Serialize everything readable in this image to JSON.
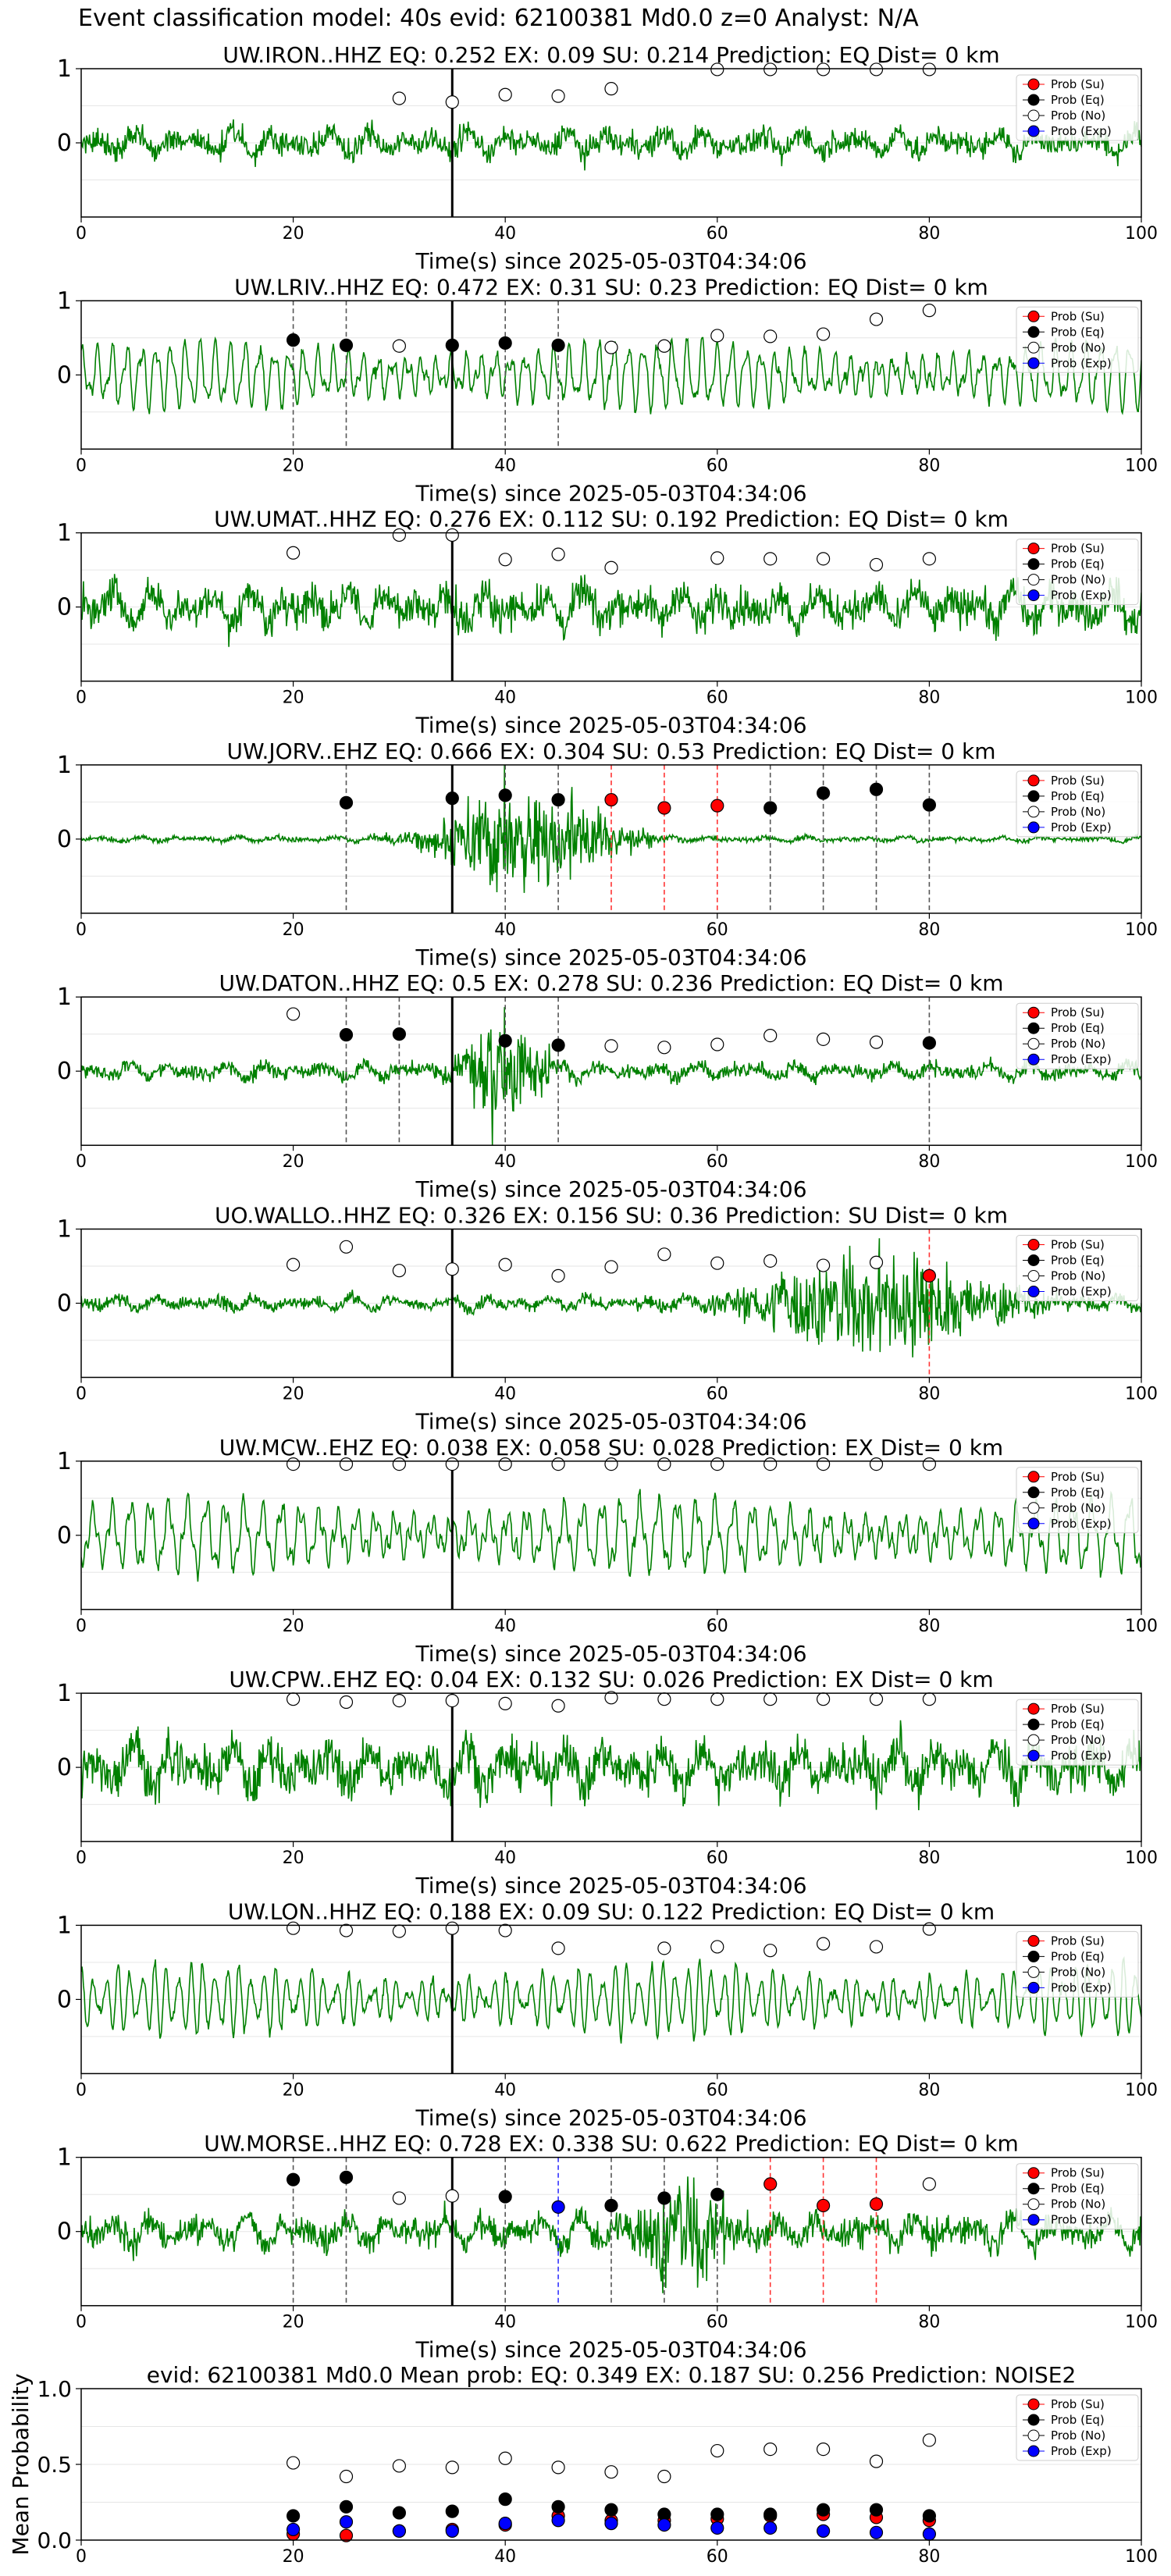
{
  "figure": {
    "title": "Event classification model: 40s evid: 62100381 Md0.0 z=0 Analyst: N/A"
  },
  "legend_labels": [
    "Prob (Su)",
    "Prob (Eq)",
    "Prob (No)",
    "Prob (Exp)"
  ],
  "colors": {
    "waveform": "#008000",
    "su": "#ff0000",
    "eq": "#000000",
    "no": "#ffffff",
    "exp": "#0000ff",
    "su_line": "#ff3333",
    "eq_line": "#555555",
    "exp_line": "#3333ff",
    "pick_line": "#000000"
  },
  "chart_data": [
    {
      "type": "scatter",
      "title": "UW.IRON..HHZ   EQ: 0.252  EX: 0.09  SU: 0.214   Prediction: EQ    Dist= 0 km",
      "xlabel": "Time(s) since 2025-05-03T04:34:06",
      "xlim": [
        0,
        100
      ],
      "ylim": [
        -1,
        1
      ],
      "xticks": [
        "0",
        "20",
        "40",
        "60",
        "80",
        "100"
      ],
      "yticks": [
        "1",
        "0"
      ],
      "pick_time": 35,
      "waveform": {
        "style": "noisy",
        "amplitude": 0.3
      },
      "series": [
        {
          "name": "Prob (No)",
          "x": [
            30,
            35,
            40,
            45,
            50,
            60,
            65,
            70,
            75,
            80
          ],
          "y": [
            0.6,
            0.55,
            0.65,
            0.63,
            0.73,
            0.99,
            0.99,
            0.99,
            0.99,
            0.99
          ]
        }
      ],
      "vlines": []
    },
    {
      "type": "scatter",
      "title": "UW.LRIV..HHZ   EQ: 0.472  EX: 0.31  SU: 0.23   Prediction: EQ    Dist= 0 km",
      "xlabel": "Time(s) since 2025-05-03T04:34:06",
      "xlim": [
        0,
        100
      ],
      "ylim": [
        -1,
        1
      ],
      "xticks": [
        "0",
        "20",
        "40",
        "60",
        "80",
        "100"
      ],
      "yticks": [
        "1",
        "0"
      ],
      "pick_time": 35,
      "waveform": {
        "style": "oscillation",
        "amplitude": 0.55
      },
      "series": [
        {
          "name": "Prob (Eq)",
          "x": [
            20,
            25,
            35,
            40,
            45
          ],
          "y": [
            0.47,
            0.4,
            0.4,
            0.43,
            0.4
          ]
        },
        {
          "name": "Prob (No)",
          "x": [
            30,
            50,
            55,
            60,
            65,
            70,
            75,
            80
          ],
          "y": [
            0.39,
            0.37,
            0.39,
            0.53,
            0.52,
            0.55,
            0.75,
            0.87
          ]
        }
      ],
      "vlines": [
        {
          "x": 20,
          "class": "eq"
        },
        {
          "x": 25,
          "class": "eq"
        },
        {
          "x": 40,
          "class": "eq"
        },
        {
          "x": 45,
          "class": "eq"
        }
      ]
    },
    {
      "type": "scatter",
      "title": "UW.UMAT..HHZ   EQ: 0.276  EX: 0.112  SU: 0.192   Prediction: EQ    Dist= 0 km",
      "xlabel": "Time(s) since 2025-05-03T04:34:06",
      "xlim": [
        0,
        100
      ],
      "ylim": [
        -1,
        1
      ],
      "xticks": [
        "0",
        "20",
        "40",
        "60",
        "80",
        "100"
      ],
      "yticks": [
        "1",
        "0"
      ],
      "pick_time": 35,
      "waveform": {
        "style": "noisy",
        "amplitude": 0.45
      },
      "series": [
        {
          "name": "Prob (No)",
          "x": [
            20,
            30,
            35,
            40,
            45,
            50,
            60,
            65,
            70,
            75,
            80
          ],
          "y": [
            0.73,
            0.97,
            0.97,
            0.64,
            0.71,
            0.53,
            0.66,
            0.65,
            0.65,
            0.57,
            0.65
          ]
        }
      ],
      "vlines": []
    },
    {
      "type": "scatter",
      "title": "UW.JORV..EHZ   EQ: 0.666  EX: 0.304  SU: 0.53   Prediction: EQ    Dist= 0 km",
      "xlabel": "Time(s) since 2025-05-03T04:34:06",
      "xlim": [
        0,
        100
      ],
      "ylim": [
        -1,
        1
      ],
      "xticks": [
        "0",
        "20",
        "40",
        "60",
        "80",
        "100"
      ],
      "yticks": [
        "1",
        "0"
      ],
      "pick_time": 35,
      "waveform": {
        "style": "burst",
        "amplitude": 0.06,
        "burst_center": 42,
        "burst_width": 8,
        "burst_amplitude": 0.75
      },
      "series": [
        {
          "name": "Prob (Su)",
          "x": [
            50,
            55,
            60
          ],
          "y": [
            0.53,
            0.42,
            0.45
          ]
        },
        {
          "name": "Prob (Eq)",
          "x": [
            25,
            35,
            40,
            45,
            65,
            70,
            75,
            80
          ],
          "y": [
            0.49,
            0.55,
            0.59,
            0.53,
            0.42,
            0.62,
            0.67,
            0.46
          ]
        }
      ],
      "vlines": [
        {
          "x": 25,
          "class": "eq"
        },
        {
          "x": 40,
          "class": "eq"
        },
        {
          "x": 45,
          "class": "eq"
        },
        {
          "x": 50,
          "class": "su"
        },
        {
          "x": 55,
          "class": "su"
        },
        {
          "x": 60,
          "class": "su"
        },
        {
          "x": 65,
          "class": "eq"
        },
        {
          "x": 70,
          "class": "eq"
        },
        {
          "x": 75,
          "class": "eq"
        },
        {
          "x": 80,
          "class": "eq"
        }
      ]
    },
    {
      "type": "scatter",
      "title": "UW.DATON..HHZ   EQ: 0.5  EX: 0.278  SU: 0.236   Prediction: EQ    Dist= 0 km",
      "xlabel": "Time(s) since 2025-05-03T04:34:06",
      "xlim": [
        0,
        100
      ],
      "ylim": [
        -1,
        1
      ],
      "xticks": [
        "0",
        "20",
        "40",
        "60",
        "80",
        "100"
      ],
      "yticks": [
        "1",
        "0"
      ],
      "pick_time": 35,
      "waveform": {
        "style": "burst",
        "amplitude": 0.18,
        "burst_center": 40,
        "burst_width": 4,
        "burst_amplitude": 0.8
      },
      "series": [
        {
          "name": "Prob (Eq)",
          "x": [
            25,
            30,
            40,
            45,
            80
          ],
          "y": [
            0.49,
            0.5,
            0.41,
            0.35,
            0.38
          ]
        },
        {
          "name": "Prob (No)",
          "x": [
            20,
            50,
            55,
            60,
            65,
            70,
            75
          ],
          "y": [
            0.77,
            0.34,
            0.32,
            0.36,
            0.48,
            0.43,
            0.39
          ]
        }
      ],
      "vlines": [
        {
          "x": 25,
          "class": "eq"
        },
        {
          "x": 30,
          "class": "eq"
        },
        {
          "x": 40,
          "class": "eq"
        },
        {
          "x": 45,
          "class": "eq"
        },
        {
          "x": 80,
          "class": "eq"
        }
      ]
    },
    {
      "type": "scatter",
      "title": "UO.WALLO..HHZ   EQ: 0.326  EX: 0.156  SU: 0.36   Prediction: SU    Dist= 0 km",
      "xlabel": "Time(s) since 2025-05-03T04:34:06",
      "xlim": [
        0,
        100
      ],
      "ylim": [
        -1,
        1
      ],
      "xticks": [
        "0",
        "20",
        "40",
        "60",
        "80",
        "100"
      ],
      "yticks": [
        "1",
        "0"
      ],
      "pick_time": 35,
      "waveform": {
        "style": "burst",
        "amplitude": 0.15,
        "burst_center": 75,
        "burst_width": 12,
        "burst_amplitude": 0.7
      },
      "series": [
        {
          "name": "Prob (Su)",
          "x": [
            80
          ],
          "y": [
            0.37
          ]
        },
        {
          "name": "Prob (No)",
          "x": [
            20,
            25,
            30,
            35,
            40,
            45,
            50,
            55,
            60,
            65,
            70,
            75
          ],
          "y": [
            0.52,
            0.76,
            0.44,
            0.46,
            0.52,
            0.37,
            0.49,
            0.66,
            0.54,
            0.57,
            0.51,
            0.55
          ]
        }
      ],
      "vlines": [
        {
          "x": 80,
          "class": "su"
        }
      ]
    },
    {
      "type": "scatter",
      "title": "UW.MCW..EHZ   EQ: 0.038  EX: 0.058  SU: 0.028   Prediction: EX    Dist= 0 km",
      "xlabel": "Time(s) since 2025-05-03T04:34:06",
      "xlim": [
        0,
        100
      ],
      "ylim": [
        -1,
        1
      ],
      "xticks": [
        "0",
        "20",
        "40",
        "60",
        "80",
        "100"
      ],
      "yticks": [
        "1",
        "0"
      ],
      "pick_time": 35,
      "waveform": {
        "style": "oscillation",
        "amplitude": 0.6
      },
      "series": [
        {
          "name": "Prob (No)",
          "x": [
            20,
            25,
            30,
            35,
            40,
            45,
            50,
            55,
            60,
            65,
            70,
            75,
            80
          ],
          "y": [
            0.96,
            0.96,
            0.96,
            0.96,
            0.96,
            0.96,
            0.96,
            0.96,
            0.96,
            0.96,
            0.96,
            0.96,
            0.96
          ]
        }
      ],
      "vlines": []
    },
    {
      "type": "scatter",
      "title": "UW.CPW..EHZ   EQ: 0.04  EX: 0.132  SU: 0.026   Prediction: EX    Dist= 0 km",
      "xlabel": "Time(s) since 2025-05-03T04:34:06",
      "xlim": [
        0,
        100
      ],
      "ylim": [
        -1,
        1
      ],
      "xticks": [
        "0",
        "20",
        "40",
        "60",
        "80",
        "100"
      ],
      "yticks": [
        "1",
        "0"
      ],
      "pick_time": 35,
      "waveform": {
        "style": "noisy",
        "amplitude": 0.55
      },
      "series": [
        {
          "name": "Prob (No)",
          "x": [
            20,
            25,
            30,
            35,
            40,
            45,
            50,
            55,
            60,
            65,
            70,
            75,
            80
          ],
          "y": [
            0.92,
            0.88,
            0.9,
            0.9,
            0.86,
            0.83,
            0.94,
            0.92,
            0.92,
            0.92,
            0.92,
            0.92,
            0.92
          ]
        }
      ],
      "vlines": []
    },
    {
      "type": "scatter",
      "title": "UW.LON..HHZ   EQ: 0.188  EX: 0.09  SU: 0.122   Prediction: EQ    Dist= 0 km",
      "xlabel": "Time(s) since 2025-05-03T04:34:06",
      "xlim": [
        0,
        100
      ],
      "ylim": [
        -1,
        1
      ],
      "xticks": [
        "0",
        "20",
        "40",
        "60",
        "80",
        "100"
      ],
      "yticks": [
        "1",
        "0"
      ],
      "pick_time": 35,
      "waveform": {
        "style": "oscillation",
        "amplitude": 0.55
      },
      "series": [
        {
          "name": "Prob (No)",
          "x": [
            20,
            25,
            30,
            35,
            40,
            45,
            55,
            60,
            65,
            70,
            75,
            80
          ],
          "y": [
            0.96,
            0.93,
            0.92,
            0.96,
            0.93,
            0.69,
            0.69,
            0.71,
            0.66,
            0.75,
            0.71,
            0.95
          ]
        }
      ],
      "vlines": []
    },
    {
      "type": "scatter",
      "title": "UW.MORSE..HHZ   EQ: 0.728  EX: 0.338  SU: 0.622   Prediction: EQ    Dist= 0 km",
      "xlabel": "Time(s) since 2025-05-03T04:34:06",
      "xlim": [
        0,
        100
      ],
      "ylim": [
        -1,
        1
      ],
      "xticks": [
        "0",
        "20",
        "40",
        "60",
        "80",
        "100"
      ],
      "yticks": [
        "1",
        "0"
      ],
      "pick_time": 35,
      "waveform": {
        "style": "burst",
        "amplitude": 0.35,
        "burst_center": 57,
        "burst_width": 5,
        "burst_amplitude": 0.7
      },
      "series": [
        {
          "name": "Prob (Su)",
          "x": [
            65,
            70,
            75
          ],
          "y": [
            0.64,
            0.35,
            0.37
          ]
        },
        {
          "name": "Prob (Eq)",
          "x": [
            20,
            25,
            40,
            50,
            55,
            60
          ],
          "y": [
            0.7,
            0.73,
            0.47,
            0.35,
            0.45,
            0.5
          ]
        },
        {
          "name": "Prob (No)",
          "x": [
            30,
            35,
            80
          ],
          "y": [
            0.45,
            0.48,
            0.64
          ]
        },
        {
          "name": "Prob (Exp)",
          "x": [
            45
          ],
          "y": [
            0.33
          ]
        }
      ],
      "vlines": [
        {
          "x": 20,
          "class": "eq"
        },
        {
          "x": 25,
          "class": "eq"
        },
        {
          "x": 40,
          "class": "eq"
        },
        {
          "x": 45,
          "class": "exp"
        },
        {
          "x": 50,
          "class": "eq"
        },
        {
          "x": 55,
          "class": "eq"
        },
        {
          "x": 60,
          "class": "eq"
        },
        {
          "x": 65,
          "class": "su"
        },
        {
          "x": 70,
          "class": "su"
        },
        {
          "x": 75,
          "class": "su"
        }
      ]
    },
    {
      "type": "scatter",
      "title": "evid: 62100381  Md0.0   Mean prob:   EQ: 0.349  EX: 0.187  SU: 0.256   Prediction: NOISE2",
      "xlabel": "",
      "ylabel": "Mean Probability",
      "xlim": [
        0,
        100
      ],
      "ylim": [
        0,
        1
      ],
      "xticks": [
        "0",
        "20",
        "40",
        "60",
        "80",
        "100"
      ],
      "yticks": [
        "0.0",
        "0.5",
        "1.0"
      ],
      "series": [
        {
          "name": "Prob (Su)",
          "x": [
            20,
            25,
            30,
            35,
            40,
            45,
            50,
            55,
            60,
            65,
            70,
            75,
            80
          ],
          "y": [
            0.04,
            0.03,
            0.06,
            0.07,
            0.1,
            0.16,
            0.13,
            0.13,
            0.14,
            0.16,
            0.17,
            0.15,
            0.13
          ]
        },
        {
          "name": "Prob (Eq)",
          "x": [
            20,
            25,
            30,
            35,
            40,
            45,
            50,
            55,
            60,
            65,
            70,
            75,
            80
          ],
          "y": [
            0.16,
            0.22,
            0.18,
            0.19,
            0.27,
            0.22,
            0.2,
            0.17,
            0.17,
            0.17,
            0.2,
            0.2,
            0.16
          ]
        },
        {
          "name": "Prob (No)",
          "x": [
            20,
            25,
            30,
            35,
            40,
            45,
            50,
            55,
            60,
            65,
            70,
            75,
            80
          ],
          "y": [
            0.51,
            0.42,
            0.49,
            0.48,
            0.54,
            0.48,
            0.45,
            0.42,
            0.59,
            0.6,
            0.6,
            0.52,
            0.66
          ]
        },
        {
          "name": "Prob (Exp)",
          "x": [
            20,
            25,
            30,
            35,
            40,
            45,
            50,
            55,
            60,
            65,
            70,
            75,
            80
          ],
          "y": [
            0.07,
            0.12,
            0.06,
            0.06,
            0.11,
            0.13,
            0.11,
            0.1,
            0.08,
            0.08,
            0.06,
            0.05,
            0.04
          ]
        }
      ],
      "vlines": []
    }
  ]
}
